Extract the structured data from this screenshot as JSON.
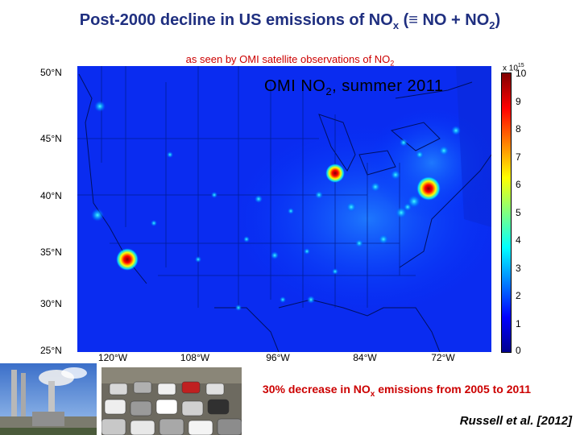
{
  "title": {
    "main": "Post-2000 decline in US emissions of NO",
    "sub_x": "x",
    "mid": " (≡ NO + NO",
    "sub_2": "2",
    "end": ")"
  },
  "subtitle": {
    "main": "as seen by OMI satellite observations of NO",
    "sub_2": "2"
  },
  "map": {
    "caption": {
      "main": "OMI NO",
      "sub": "2",
      "end": ", summer 2011"
    },
    "lat_labels": [
      "50°N",
      "45°N",
      "40°N",
      "35°N",
      "30°N",
      "25°N"
    ],
    "lon_labels": [
      "120°W",
      "108°W",
      "96°W",
      "84°W",
      "72°W"
    ],
    "hotspots": [
      "Los Angeles",
      "Chicago",
      "New York"
    ]
  },
  "colorbar": {
    "exponent_base": "x 10",
    "exponent_power": "15",
    "ticks": [
      "10",
      "9",
      "8",
      "7",
      "6",
      "5",
      "4",
      "3",
      "2",
      "1",
      "0"
    ],
    "colors": [
      "#00008f",
      "#0000ff",
      "#0080ff",
      "#00ffff",
      "#80ff80",
      "#ffff00",
      "#ff8000",
      "#ff0000",
      "#800000"
    ]
  },
  "bottom_caption": {
    "pre": "30% decrease in NO",
    "sub": "x",
    "post": " emissions from 2005 to 2011"
  },
  "reference": "Russell et al. [2012]",
  "photos": [
    "power-plant-smokestacks",
    "traffic-jam"
  ]
}
